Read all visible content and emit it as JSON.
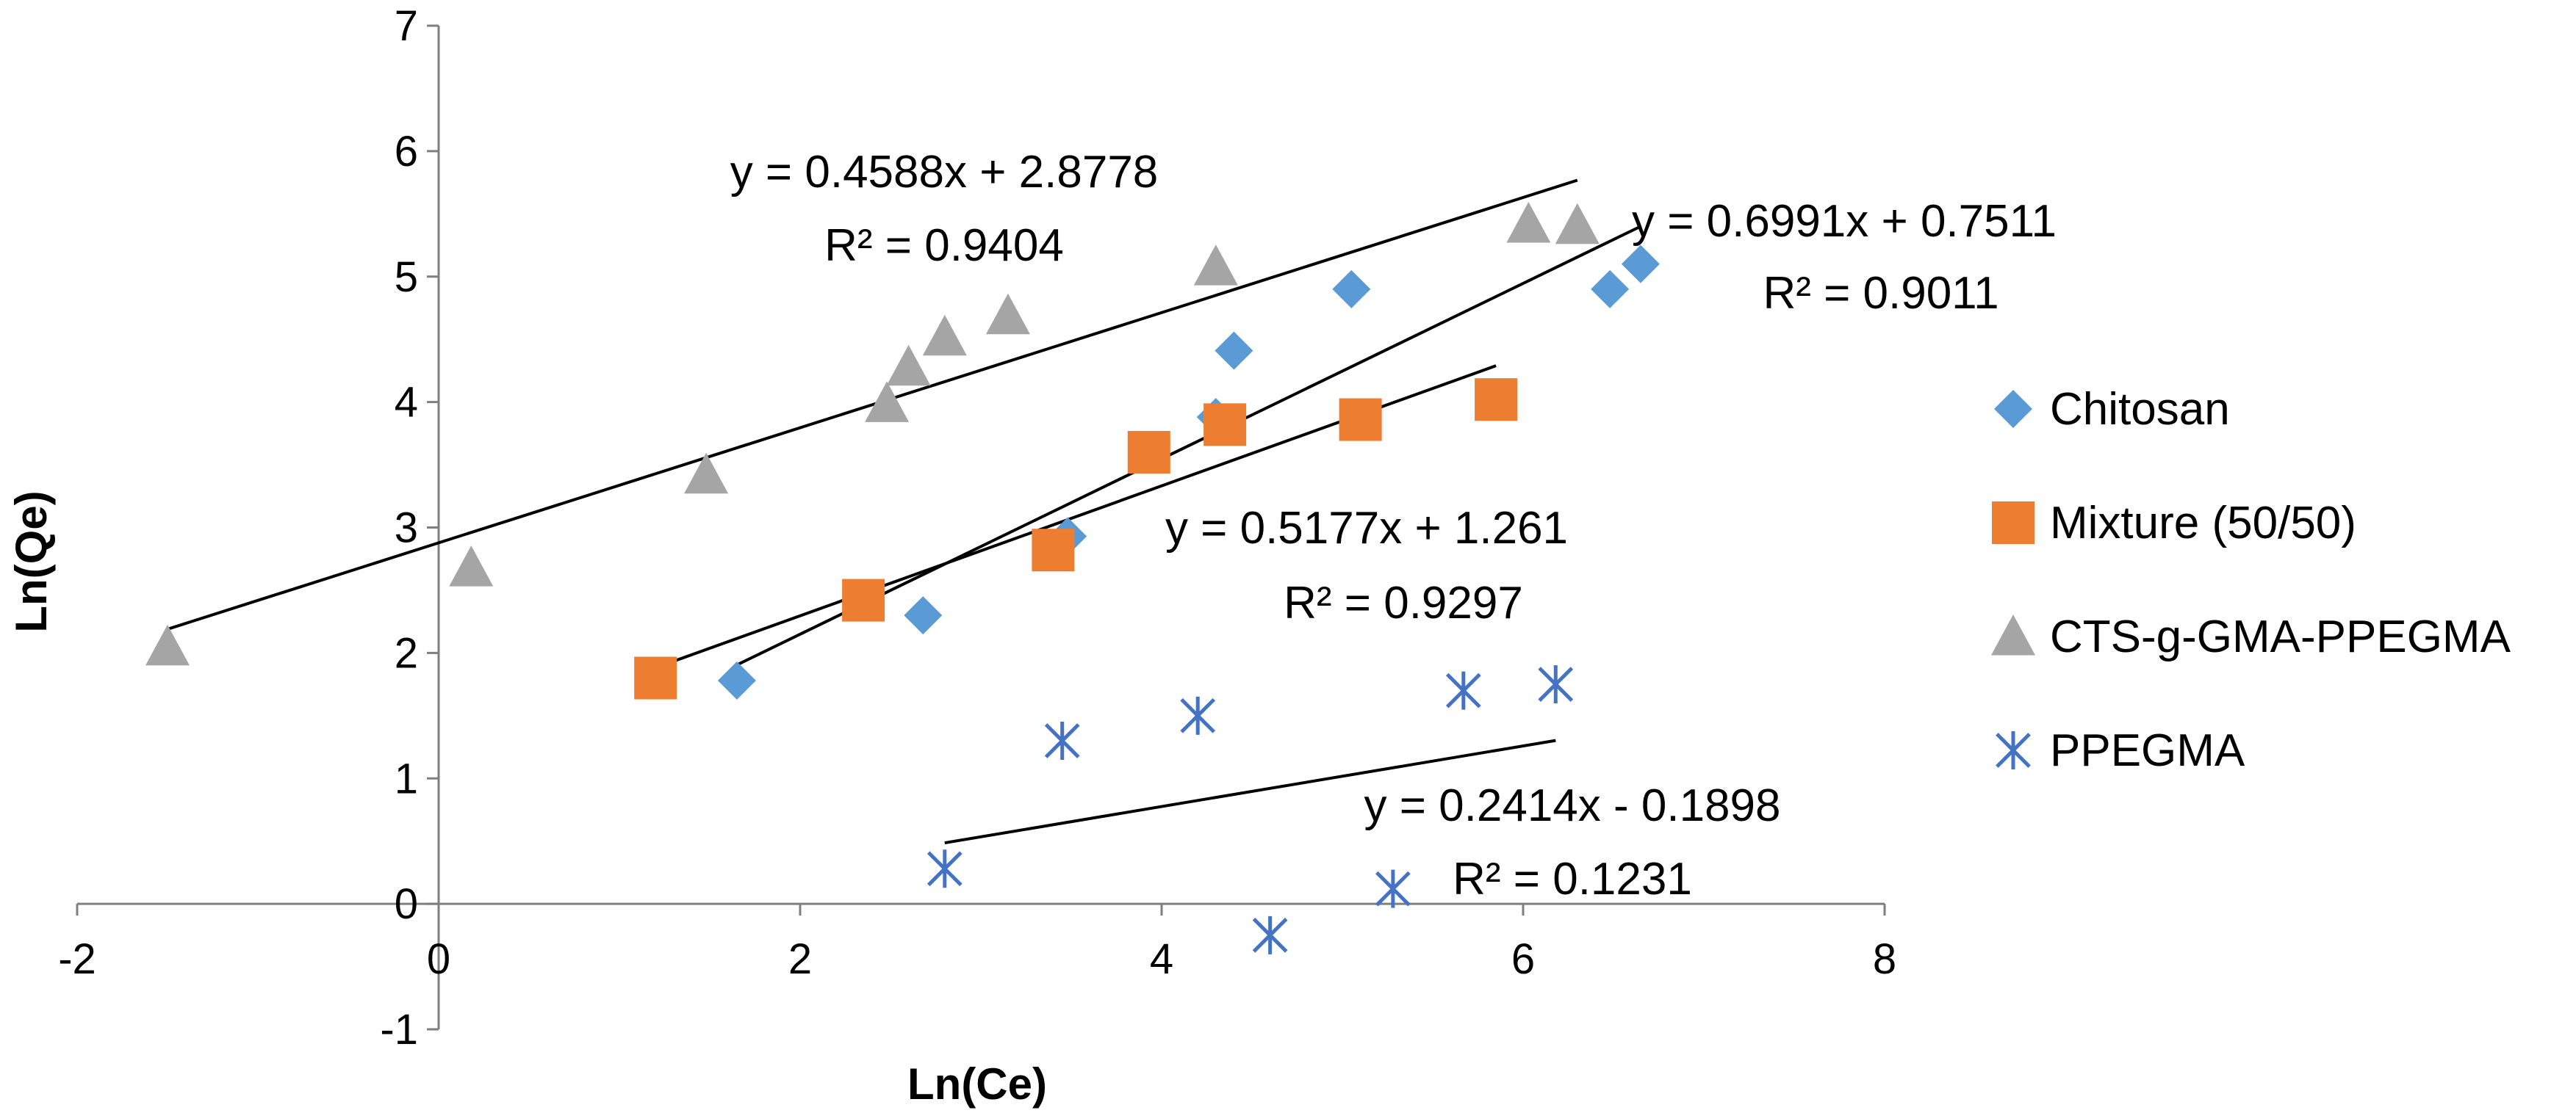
{
  "chart_data": {
    "type": "scatter",
    "title": "",
    "xlabel": "Ln(Ce)",
    "ylabel": "Ln(Qe)",
    "xlim": [
      -2,
      8
    ],
    "ylim": [
      -1,
      7
    ],
    "x_ticks": [
      -2,
      0,
      2,
      4,
      6,
      8
    ],
    "y_ticks": [
      -1,
      0,
      1,
      2,
      3,
      4,
      5,
      6,
      7
    ],
    "x_tick_labels": [
      "-2",
      "0",
      "2",
      "4",
      "6",
      "8"
    ],
    "y_tick_labels": [
      "-1",
      "0",
      "1",
      "2",
      "3",
      "4",
      "5",
      "6",
      "7"
    ],
    "grid": false,
    "legend_position": "right",
    "series": [
      {
        "name": "Chitosan",
        "marker": "diamond",
        "color": "#5B9BD5",
        "points": [
          [
            1.65,
            1.78
          ],
          [
            2.68,
            2.3
          ],
          [
            3.48,
            2.93
          ],
          [
            4.3,
            3.88
          ],
          [
            4.4,
            4.41
          ],
          [
            5.05,
            4.9
          ],
          [
            6.48,
            4.9
          ],
          [
            6.65,
            5.1
          ]
        ]
      },
      {
        "name": "Mixture (50/50)",
        "marker": "square",
        "color": "#ED7D31",
        "points": [
          [
            1.2,
            1.8
          ],
          [
            2.35,
            2.42
          ],
          [
            3.4,
            2.82
          ],
          [
            3.93,
            3.6
          ],
          [
            4.35,
            3.82
          ],
          [
            5.1,
            3.86
          ],
          [
            5.85,
            4.02
          ]
        ]
      },
      {
        "name": "CTS-g-GMA-PPEGMA",
        "marker": "triangle",
        "color": "#A5A5A5",
        "points": [
          [
            -1.5,
            2.05
          ],
          [
            0.18,
            2.68
          ],
          [
            1.48,
            3.42
          ],
          [
            2.48,
            3.99
          ],
          [
            2.6,
            4.28
          ],
          [
            2.8,
            4.52
          ],
          [
            3.15,
            4.69
          ],
          [
            4.3,
            5.08
          ],
          [
            6.03,
            5.42
          ],
          [
            6.3,
            5.41
          ]
        ]
      },
      {
        "name": "PPEGMA",
        "marker": "asterisk",
        "color": "#4472C4",
        "points": [
          [
            2.8,
            0.28
          ],
          [
            3.45,
            1.3
          ],
          [
            4.2,
            1.5
          ],
          [
            4.6,
            -0.25
          ],
          [
            5.28,
            0.12
          ],
          [
            5.67,
            1.7
          ],
          [
            6.18,
            1.75
          ]
        ]
      }
    ],
    "trendlines": [
      {
        "series": "CTS-g-GMA-PPEGMA",
        "slope": 0.4588,
        "intercept": 2.8778,
        "x_range": [
          -1.5,
          6.3
        ],
        "equation": "y = 0.4588x + 2.8778",
        "r2": "R² = 0.9404"
      },
      {
        "series": "Chitosan",
        "slope": 0.6991,
        "intercept": 0.7511,
        "x_range": [
          1.65,
          6.65
        ],
        "equation": "y = 0.6991x + 0.7511",
        "r2": "R² = 0.9011"
      },
      {
        "series": "Mixture (50/50)",
        "slope": 0.5177,
        "intercept": 1.261,
        "x_range": [
          1.2,
          5.85
        ],
        "equation": "y = 0.5177x + 1.261",
        "r2": "R² = 0.9297"
      },
      {
        "series": "PPEGMA",
        "slope": 0.2414,
        "intercept": -0.1898,
        "x_range": [
          2.8,
          6.18
        ],
        "equation": "y = 0.2414x - 0.1898",
        "r2": "R² = 0.1231"
      }
    ]
  }
}
